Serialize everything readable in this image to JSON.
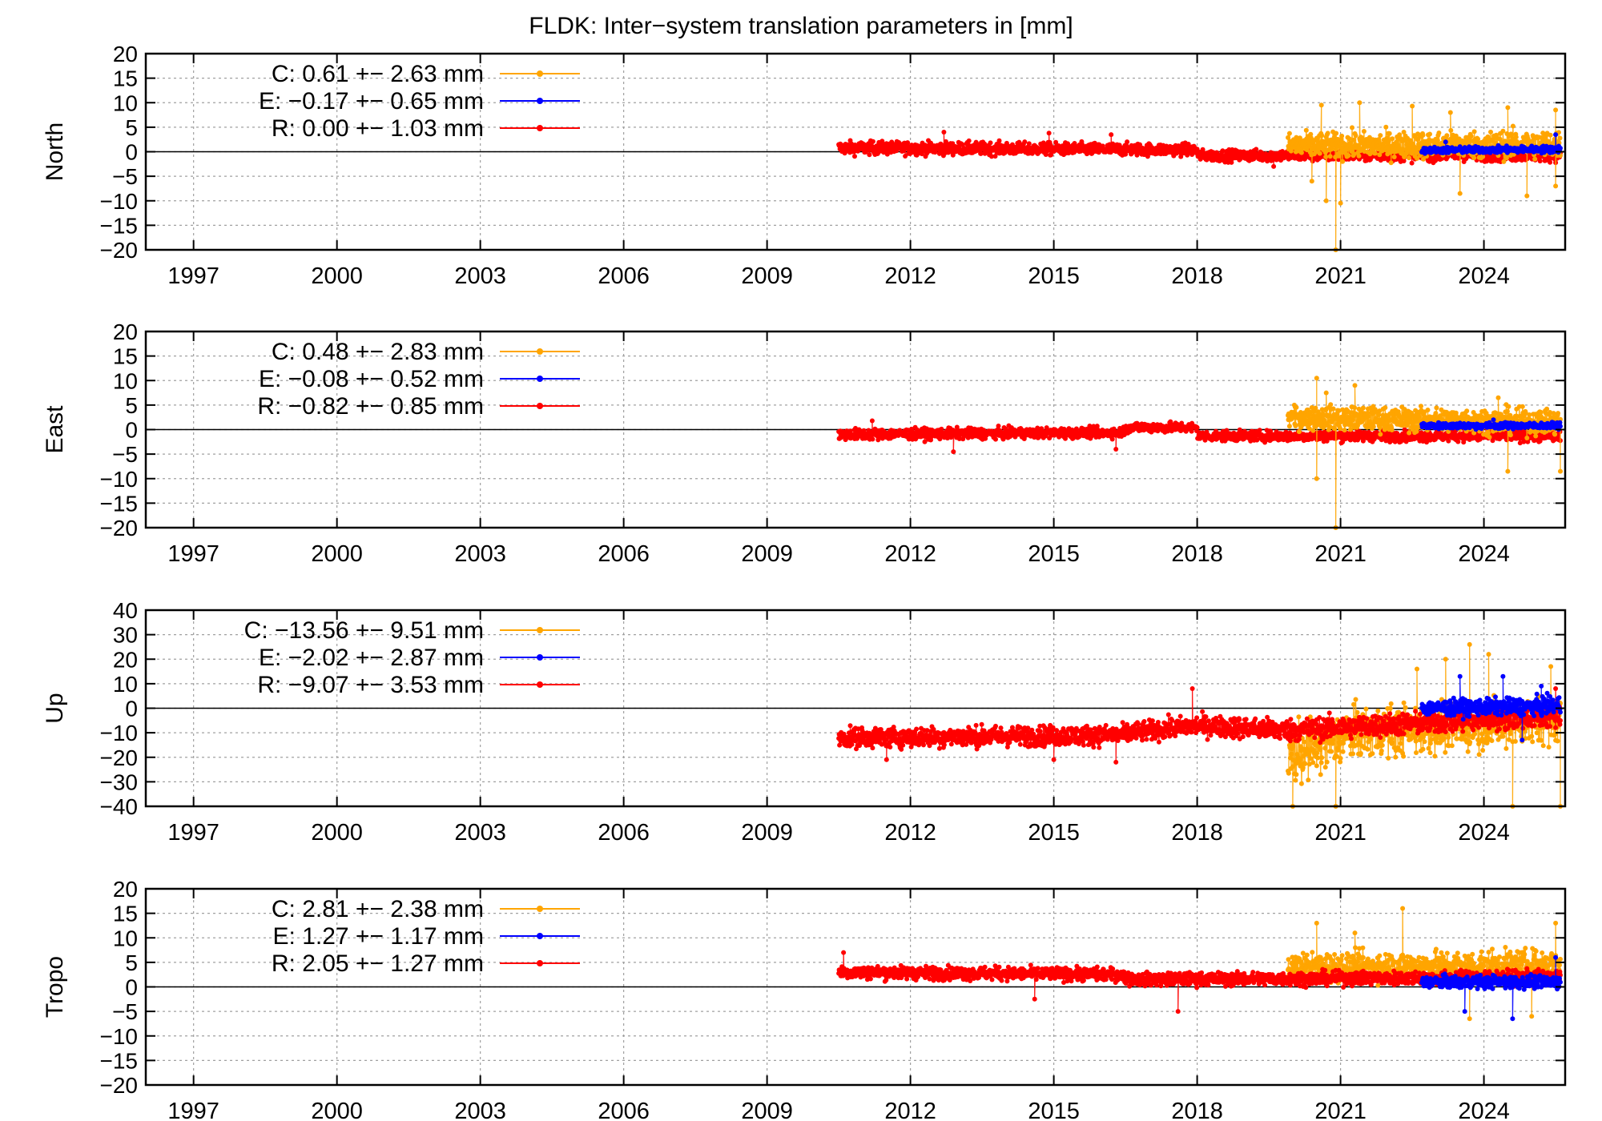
{
  "title": "FLDK: Inter−system translation parameters in [mm]",
  "colors": {
    "C": "#ffa500",
    "E": "#0000ff",
    "R": "#ff0000",
    "grid": "#a0a0a0",
    "axis": "#000000"
  },
  "x_ticks": [
    "1997",
    "2000",
    "2003",
    "2006",
    "2009",
    "2012",
    "2015",
    "2018",
    "2021",
    "2024"
  ],
  "chart_data": [
    {
      "type": "scatter",
      "ylabel": "North",
      "xlim": [
        1996,
        2025.7
      ],
      "ylim": [
        -20,
        20
      ],
      "yticks": [
        "20",
        "15",
        "10",
        "5",
        "0",
        "−5",
        "−10",
        "−15",
        "−20"
      ],
      "legend_position": "top-left",
      "legend": [
        {
          "key": "C",
          "label": "C:   0.61 +− 2.63 mm"
        },
        {
          "key": "E",
          "label": "E:  −0.17 +− 0.65 mm"
        },
        {
          "key": "R",
          "label": "R:   0.00 +− 1.03 mm"
        }
      ],
      "series": [
        {
          "key": "R",
          "x": [
            2010.5,
            2018.0,
            2018.0,
            2025.6
          ],
          "y": [
            0.8,
            0.4,
            -0.8,
            -0.6
          ],
          "spread": [
            1.3,
            1.2,
            1.1,
            1.3
          ],
          "peaks": [
            [
              2012.7,
              4.0
            ],
            [
              2014.9,
              3.8
            ],
            [
              2016.2,
              3.5
            ],
            [
              2019.6,
              -3.0
            ]
          ]
        },
        {
          "key": "C",
          "x": [
            2019.9,
            2025.6
          ],
          "y": [
            1.2,
            1.5
          ],
          "spread": [
            2.5,
            2.8
          ],
          "peaks": [
            [
              2020.6,
              9.5
            ],
            [
              2021.4,
              10.0
            ],
            [
              2022.5,
              9.3
            ],
            [
              2023.3,
              8.0
            ],
            [
              2024.5,
              9.0
            ],
            [
              2025.5,
              8.5
            ],
            [
              2020.4,
              -6.0
            ],
            [
              2020.7,
              -10.0
            ],
            [
              2020.9,
              -20.0
            ],
            [
              2021.0,
              -10.5
            ],
            [
              2023.5,
              -8.5
            ],
            [
              2024.9,
              -9.0
            ],
            [
              2025.5,
              -7.0
            ]
          ]
        },
        {
          "key": "E",
          "x": [
            2022.7,
            2025.6
          ],
          "y": [
            0.3,
            0.5
          ],
          "spread": [
            0.6,
            0.7
          ],
          "peaks": [
            [
              2025.5,
              3.5
            ],
            [
              2023.2,
              2.0
            ]
          ]
        }
      ]
    },
    {
      "type": "scatter",
      "ylabel": "East",
      "xlim": [
        1996,
        2025.7
      ],
      "ylim": [
        -20,
        20
      ],
      "yticks": [
        "20",
        "15",
        "10",
        "5",
        "0",
        "−5",
        "−10",
        "−15",
        "−20"
      ],
      "legend_position": "top-left",
      "legend": [
        {
          "key": "C",
          "label": "C:   0.48 +− 2.83 mm"
        },
        {
          "key": "E",
          "label": "E:  −0.08 +− 0.52 mm"
        },
        {
          "key": "R",
          "label": "R:  −0.82 +− 0.85 mm"
        }
      ],
      "series": [
        {
          "key": "R",
          "x": [
            2010.5,
            2016.4,
            2016.6,
            2018.0,
            2018.0,
            2025.6
          ],
          "y": [
            -1.0,
            -0.6,
            0.5,
            0.4,
            -1.3,
            -1.3
          ],
          "spread": [
            1.1,
            1.0,
            1.0,
            1.0,
            1.0,
            1.1
          ],
          "peaks": [
            [
              2012.9,
              -4.5
            ],
            [
              2016.3,
              -4.0
            ],
            [
              2011.2,
              1.8
            ]
          ]
        },
        {
          "key": "C",
          "x": [
            2019.9,
            2025.6
          ],
          "y": [
            2.5,
            1.5
          ],
          "spread": [
            2.3,
            2.5
          ],
          "peaks": [
            [
              2020.5,
              10.5
            ],
            [
              2021.3,
              9.0
            ],
            [
              2020.7,
              7.5
            ],
            [
              2024.3,
              6.5
            ],
            [
              2020.9,
              -20.0
            ],
            [
              2020.5,
              -10.0
            ],
            [
              2024.5,
              -8.5
            ],
            [
              2025.6,
              -8.5
            ]
          ]
        },
        {
          "key": "E",
          "x": [
            2022.7,
            2025.6
          ],
          "y": [
            0.8,
            0.8
          ],
          "spread": [
            0.6,
            0.6
          ],
          "peaks": [
            [
              2024.2,
              2.0
            ]
          ]
        }
      ]
    },
    {
      "type": "scatter",
      "ylabel": "Up",
      "xlim": [
        1996,
        2025.7
      ],
      "ylim": [
        -40,
        40
      ],
      "yticks": [
        "40",
        "30",
        "20",
        "10",
        "0",
        "−10",
        "−20",
        "−30",
        "−40"
      ],
      "legend_position": "top-left",
      "legend": [
        {
          "key": "C",
          "label": "C: −13.56 +− 9.51 mm"
        },
        {
          "key": "E",
          "label": "E:  −2.02 +− 2.87 mm"
        },
        {
          "key": "R",
          "label": "R:  −9.07 +− 3.53 mm"
        }
      ],
      "series": [
        {
          "key": "C",
          "x": [
            2019.9,
            2021.3,
            2025.6
          ],
          "y": [
            -20.0,
            -10.0,
            -5.0
          ],
          "spread": [
            12.0,
            10.0,
            9.0
          ],
          "peaks": [
            [
              2020.9,
              -40.0
            ],
            [
              2020.0,
              -40.0
            ],
            [
              2023.7,
              26.0
            ],
            [
              2024.1,
              22.0
            ],
            [
              2025.4,
              17.0
            ],
            [
              2023.2,
              20.0
            ],
            [
              2022.6,
              16.0
            ],
            [
              2024.6,
              -40.0
            ],
            [
              2025.6,
              -40.0
            ]
          ]
        },
        {
          "key": "R",
          "x": [
            2010.5,
            2016.4,
            2016.6,
            2018.0,
            2019.9,
            2025.6
          ],
          "y": [
            -12.0,
            -11.0,
            -10.0,
            -7.0,
            -9.0,
            -3.0
          ],
          "spread": [
            4.0,
            4.0,
            4.0,
            4.0,
            4.5,
            4.5
          ],
          "peaks": [
            [
              2017.9,
              8.0
            ],
            [
              2016.3,
              -22.0
            ],
            [
              2015.0,
              -21.0
            ],
            [
              2011.5,
              -21.0
            ],
            [
              2025.5,
              8.0
            ]
          ]
        },
        {
          "key": "E",
          "x": [
            2022.7,
            2025.6
          ],
          "y": [
            0.0,
            1.0
          ],
          "spread": [
            3.0,
            3.5
          ],
          "peaks": [
            [
              2023.5,
              13.0
            ],
            [
              2024.4,
              13.0
            ],
            [
              2024.8,
              -13.0
            ],
            [
              2025.2,
              9.0
            ]
          ]
        }
      ]
    },
    {
      "type": "scatter",
      "ylabel": "Tropo",
      "xlim": [
        1996,
        2025.7
      ],
      "ylim": [
        -20,
        20
      ],
      "yticks": [
        "20",
        "15",
        "10",
        "5",
        "0",
        "−5",
        "−10",
        "−15",
        "−20"
      ],
      "legend_position": "top-left",
      "legend": [
        {
          "key": "C",
          "label": "C:   2.81 +− 2.38 mm"
        },
        {
          "key": "E",
          "label": "E:   1.27 +− 1.17 mm"
        },
        {
          "key": "R",
          "label": "R:   2.05 +− 1.27 mm"
        }
      ],
      "series": [
        {
          "key": "C",
          "x": [
            2019.9,
            2025.6
          ],
          "y": [
            4.0,
            4.5
          ],
          "spread": [
            2.8,
            3.0
          ],
          "peaks": [
            [
              2020.5,
              13.0
            ],
            [
              2022.3,
              16.0
            ],
            [
              2021.3,
              11.0
            ],
            [
              2025.5,
              13.0
            ],
            [
              2023.7,
              -6.5
            ],
            [
              2025.0,
              -6.0
            ]
          ]
        },
        {
          "key": "R",
          "x": [
            2010.5,
            2016.4,
            2016.6,
            2025.6
          ],
          "y": [
            3.0,
            2.5,
            1.5,
            2.0
          ],
          "spread": [
            1.3,
            1.3,
            1.3,
            1.4
          ],
          "peaks": [
            [
              2017.6,
              -5.0
            ],
            [
              2010.6,
              7.0
            ],
            [
              2014.6,
              -2.5
            ]
          ]
        },
        {
          "key": "E",
          "x": [
            2022.7,
            2025.6
          ],
          "y": [
            1.0,
            1.0
          ],
          "spread": [
            1.2,
            1.3
          ],
          "peaks": [
            [
              2023.6,
              -5.0
            ],
            [
              2024.6,
              -6.5
            ],
            [
              2025.5,
              6.0
            ]
          ]
        }
      ]
    }
  ]
}
